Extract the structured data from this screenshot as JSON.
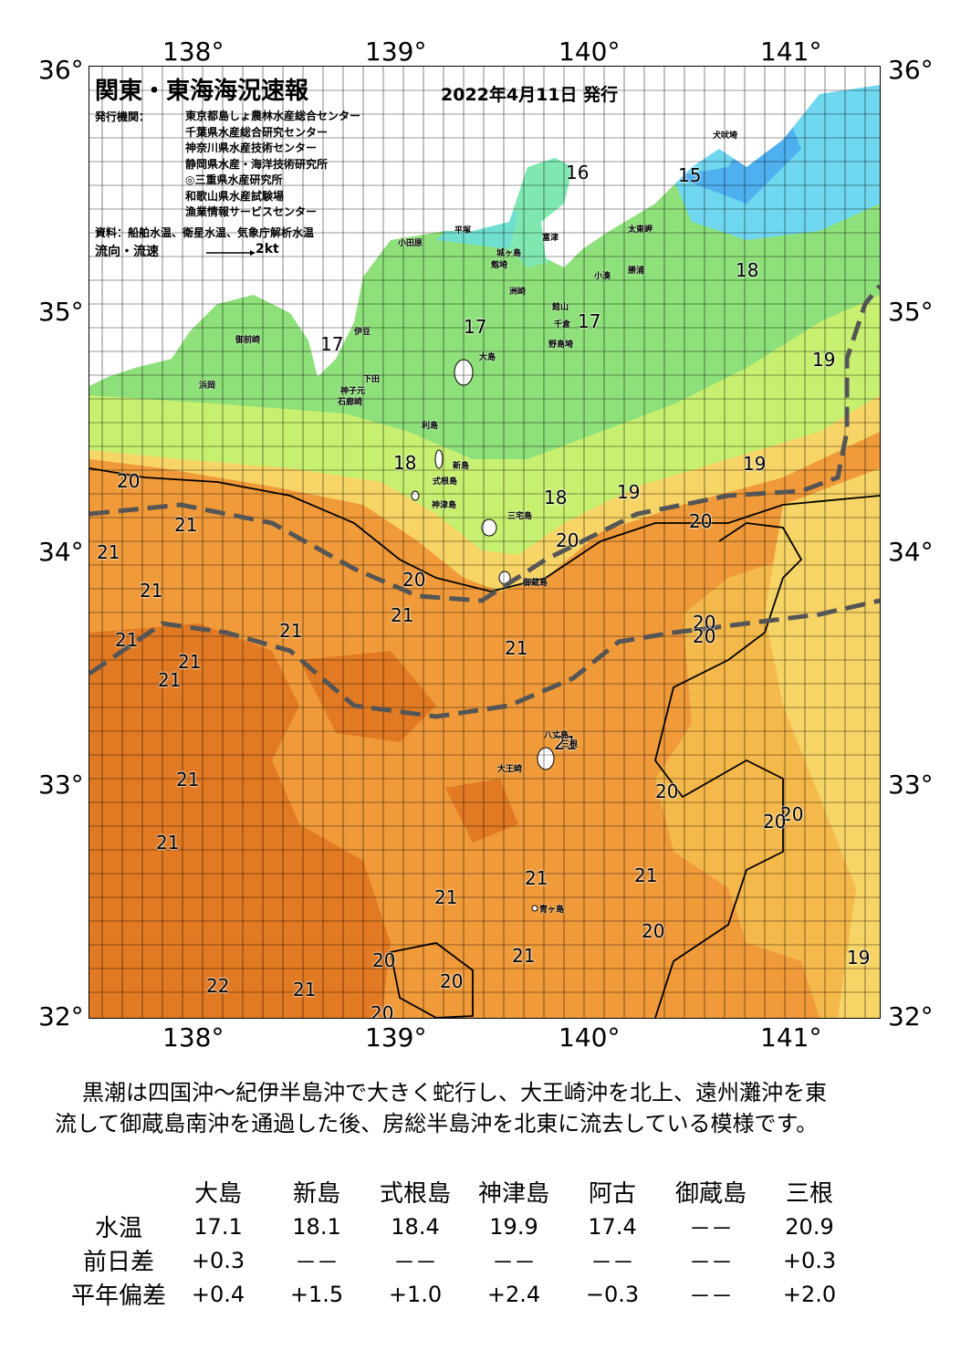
{
  "map": {
    "title": "関東・東海海況速報",
    "issue_date": "2022年4月11日 発行",
    "issuer_label": "発行機関：",
    "issuers": [
      "東京都島しょ農林水産総合センター",
      "千葉県水産総合研究センター",
      "神奈川県水産技術センター",
      "静岡県水産・海洋技術研究所",
      "◎三重県水産研究所",
      "和歌山県水産試験場",
      "漁業情報サービスセンター"
    ],
    "source": "資料：船舶水温、衛星水温、気象庁解析水温",
    "flow_label": "流向・流速",
    "flow_scale": "2kt",
    "lon_labels": [
      "138°",
      "139°",
      "140°",
      "141°"
    ],
    "lat_labels": [
      "36°",
      "35°",
      "34°",
      "33°",
      "32°"
    ],
    "temp_labels": [
      "16",
      "15",
      "18",
      "17",
      "17",
      "19",
      "17",
      "18",
      "19",
      "20",
      "21",
      "21",
      "21",
      "18",
      "20",
      "19",
      "20",
      "20",
      "21",
      "21",
      "21",
      "21",
      "21",
      "21",
      "20",
      "20",
      "21",
      "21",
      "21",
      "20",
      "20",
      "21",
      "21",
      "21",
      "20",
      "21",
      "20",
      "20",
      "22",
      "21",
      "20",
      "20",
      "19"
    ],
    "place_names": [
      "犬吠埼",
      "太東岬",
      "勝浦",
      "小湊",
      "館山",
      "千倉",
      "野島埼",
      "洲崎",
      "城ヶ島",
      "剱埼",
      "平塚",
      "小田原",
      "富津",
      "大島",
      "利島",
      "新島",
      "式根島",
      "神津島",
      "三宅島",
      "御蔵島",
      "八丈島",
      "青ヶ島",
      "大王崎",
      "伊豆",
      "下田",
      "石廊崎",
      "御前崎",
      "浜岡",
      "神子元",
      "三根"
    ]
  },
  "description": [
    "黒潮は四国沖～紀伊半島沖で大きく蛇行し、大王崎沖を北上、遠州灘沖を東",
    "流して御蔵島南沖を通過した後、房総半島沖を北東に流去している模様です。"
  ],
  "table": {
    "columns": [
      "大島",
      "新島",
      "式根島",
      "神津島",
      "阿古",
      "御蔵島",
      "三根"
    ],
    "rows": [
      {
        "label": "水温",
        "values": [
          "17.1",
          "18.1",
          "18.4",
          "19.9",
          "17.4",
          "－－",
          "20.9"
        ]
      },
      {
        "label": "前日差",
        "values": [
          "+0.3",
          "－－",
          "－－",
          "－－",
          "－－",
          "－－",
          "+0.3"
        ]
      },
      {
        "label": "平年偏差",
        "values": [
          "+0.4",
          "+1.5",
          "+1.0",
          "+2.4",
          "−0.3",
          "－－",
          "+2.0"
        ]
      }
    ]
  },
  "colors": {
    "warm": "#f09a3a",
    "warmer": "#e0701c",
    "yellow": "#f7d466",
    "lightgreen": "#c8f070",
    "green": "#8ee07a",
    "cyan": "#6fe0d0",
    "blue": "#4fb0f0",
    "kuroshio_line": "#555555"
  }
}
